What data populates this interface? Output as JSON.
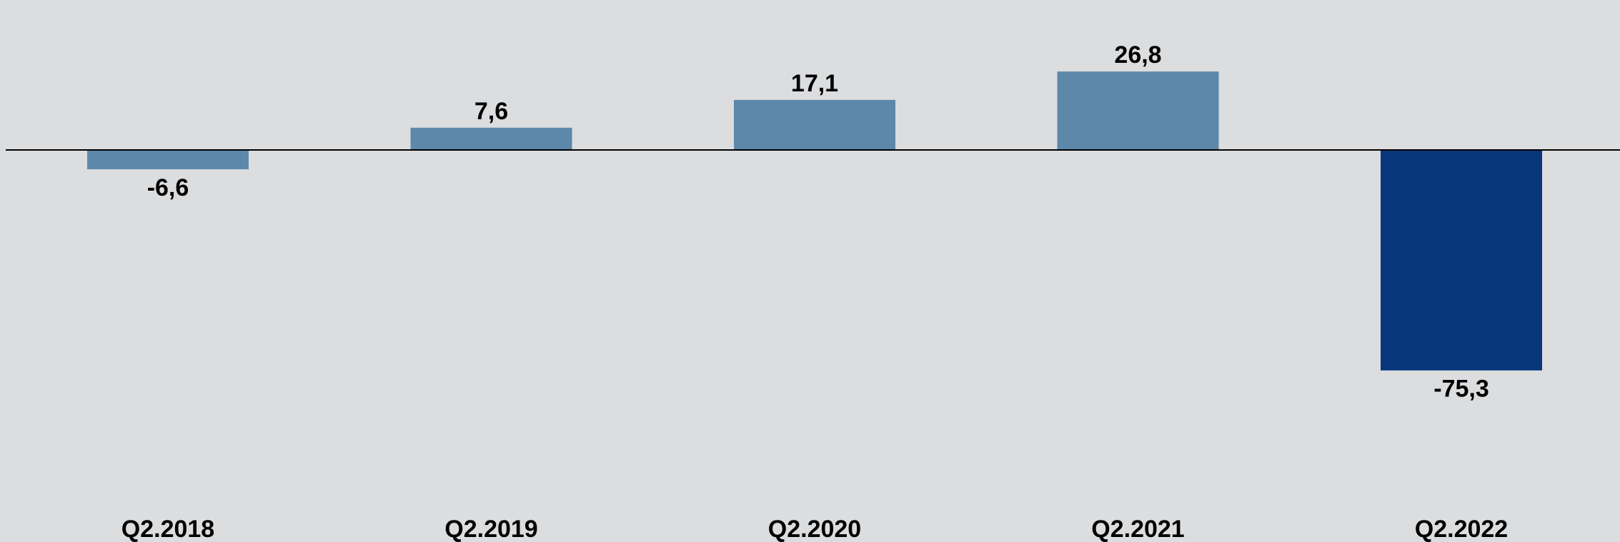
{
  "chart_data": {
    "type": "bar",
    "categories": [
      "Q2.2018",
      "Q2.2019",
      "Q2.2020",
      "Q2.2021",
      "Q2.2022"
    ],
    "values": [
      -6.6,
      7.6,
      17.1,
      26.8,
      -75.3
    ],
    "value_labels": [
      "-6,6",
      "7,6",
      "17,1",
      "26,8",
      "-75,3"
    ],
    "title": "",
    "xlabel": "",
    "ylabel": "",
    "ylim": [
      -75.3,
      26.8
    ],
    "grid": false,
    "legend": "none",
    "colors": {
      "default_bar": "#5e88aa",
      "highlight_bar": "#07367a",
      "highlight_index": 4,
      "axis": "#000000",
      "background": "#dcdddf"
    }
  }
}
